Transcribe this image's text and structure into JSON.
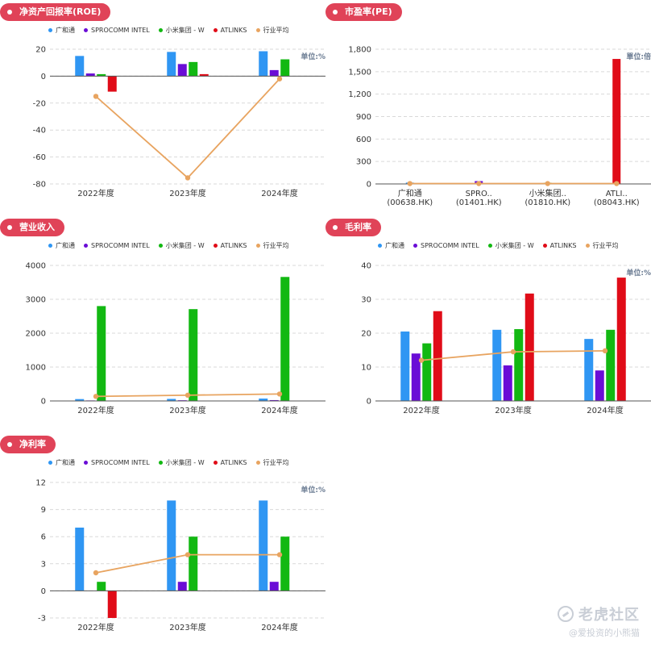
{
  "legend": [
    {
      "name": "广和通",
      "color": "#2f96f3"
    },
    {
      "name": "SPROCOMM INTEL",
      "color": "#6a0dd6"
    },
    {
      "name": "小米集团 - W",
      "color": "#12b812"
    },
    {
      "name": "ATLINKS",
      "color": "#e00c18"
    },
    {
      "name": "行业平均",
      "color": "#e8a460"
    }
  ],
  "panels": {
    "roe": {
      "title": "净资产回报率(ROE)"
    },
    "pe": {
      "title": "市盈率(PE)"
    },
    "revenue": {
      "title": "营业收入"
    },
    "gross": {
      "title": "毛利率"
    },
    "net": {
      "title": "净利率"
    }
  },
  "watermark": {
    "brand": "老虎社区",
    "user": "@爱投资的小熊猫"
  },
  "chart_data": [
    {
      "id": "roe",
      "type": "bar",
      "title": "净资产回报率(ROE)",
      "unit": "单位:%",
      "categories": [
        "2022年度",
        "2023年度",
        "2024年度"
      ],
      "ylim": [
        -80,
        20
      ],
      "yticks": [
        20,
        0,
        -20,
        -40,
        -60,
        -80
      ],
      "series": [
        {
          "name": "广和通",
          "values": [
            15,
            18,
            18.5
          ]
        },
        {
          "name": "SPROCOMM INTEL",
          "values": [
            2,
            9,
            4.5
          ]
        },
        {
          "name": "小米集团 - W",
          "values": [
            1.5,
            10.5,
            12.5
          ]
        },
        {
          "name": "ATLINKS",
          "values": [
            -11.5,
            1.5,
            0
          ]
        }
      ],
      "average": {
        "name": "行业平均",
        "values": [
          -15,
          -75.5,
          -2
        ]
      }
    },
    {
      "id": "pe",
      "type": "bar",
      "title": "市盈率(PE)",
      "unit": "單位:倍",
      "categories": [
        "广和通\n(00638.HK)",
        "SPRO..\n(01401.HK)",
        "小米集团..\n(01810.HK)",
        "ATLI..\n(08043.HK)"
      ],
      "ylim": [
        0,
        1800
      ],
      "yticks": [
        "1,800",
        "1,500",
        "1,200",
        "900",
        "600",
        "300",
        "0"
      ],
      "values": [
        18,
        38,
        15,
        1670
      ],
      "colors": [
        "#2f96f3",
        "#6a0dd6",
        "#12b812",
        "#e00c18"
      ],
      "average": {
        "name": "行业平均",
        "values": [
          5,
          5,
          5,
          5
        ]
      }
    },
    {
      "id": "revenue",
      "type": "bar",
      "title": "营业收入",
      "categories": [
        "2022年度",
        "2023年度",
        "2024年度"
      ],
      "ylim": [
        0,
        4000
      ],
      "yticks": [
        4000,
        3000,
        2000,
        1000,
        0
      ],
      "series": [
        {
          "name": "广和通",
          "values": [
            55,
            60,
            70
          ]
        },
        {
          "name": "SPROCOMM INTEL",
          "values": [
            15,
            20,
            25
          ]
        },
        {
          "name": "小米集团 - W",
          "values": [
            2800,
            2710,
            3660
          ]
        },
        {
          "name": "ATLINKS",
          "values": [
            5,
            5,
            5
          ]
        }
      ],
      "average": {
        "name": "行业平均",
        "values": [
          135,
          170,
          205
        ]
      }
    },
    {
      "id": "gross",
      "type": "bar",
      "title": "毛利率",
      "unit": "单位:%",
      "categories": [
        "2022年度",
        "2023年度",
        "2024年度"
      ],
      "ylim": [
        0,
        40
      ],
      "yticks": [
        40,
        30,
        20,
        10,
        0
      ],
      "series": [
        {
          "name": "广和通",
          "values": [
            20.5,
            21,
            18.3
          ]
        },
        {
          "name": "SPROCOMM INTEL",
          "values": [
            14,
            10.5,
            9
          ]
        },
        {
          "name": "小米集团 - W",
          "values": [
            17,
            21.2,
            21
          ]
        },
        {
          "name": "ATLINKS",
          "values": [
            26.5,
            31.7,
            36.4
          ]
        }
      ],
      "average": {
        "name": "行业平均",
        "values": [
          12,
          14.5,
          14.8
        ]
      }
    },
    {
      "id": "net",
      "type": "bar",
      "title": "净利率",
      "unit": "单位:%",
      "categories": [
        "2022年度",
        "2023年度",
        "2024年度"
      ],
      "ylim": [
        -3,
        12
      ],
      "yticks": [
        12,
        9,
        6,
        3,
        0,
        -3
      ],
      "series": [
        {
          "name": "广和通",
          "values": [
            7,
            10,
            10
          ]
        },
        {
          "name": "SPROCOMM INTEL",
          "values": [
            0,
            1,
            1
          ]
        },
        {
          "name": "小米集团 - W",
          "values": [
            1,
            6,
            6
          ]
        },
        {
          "name": "ATLINKS",
          "values": [
            -3,
            0,
            0
          ]
        }
      ],
      "average": {
        "name": "行业平均",
        "values": [
          2,
          4,
          4
        ]
      }
    }
  ]
}
